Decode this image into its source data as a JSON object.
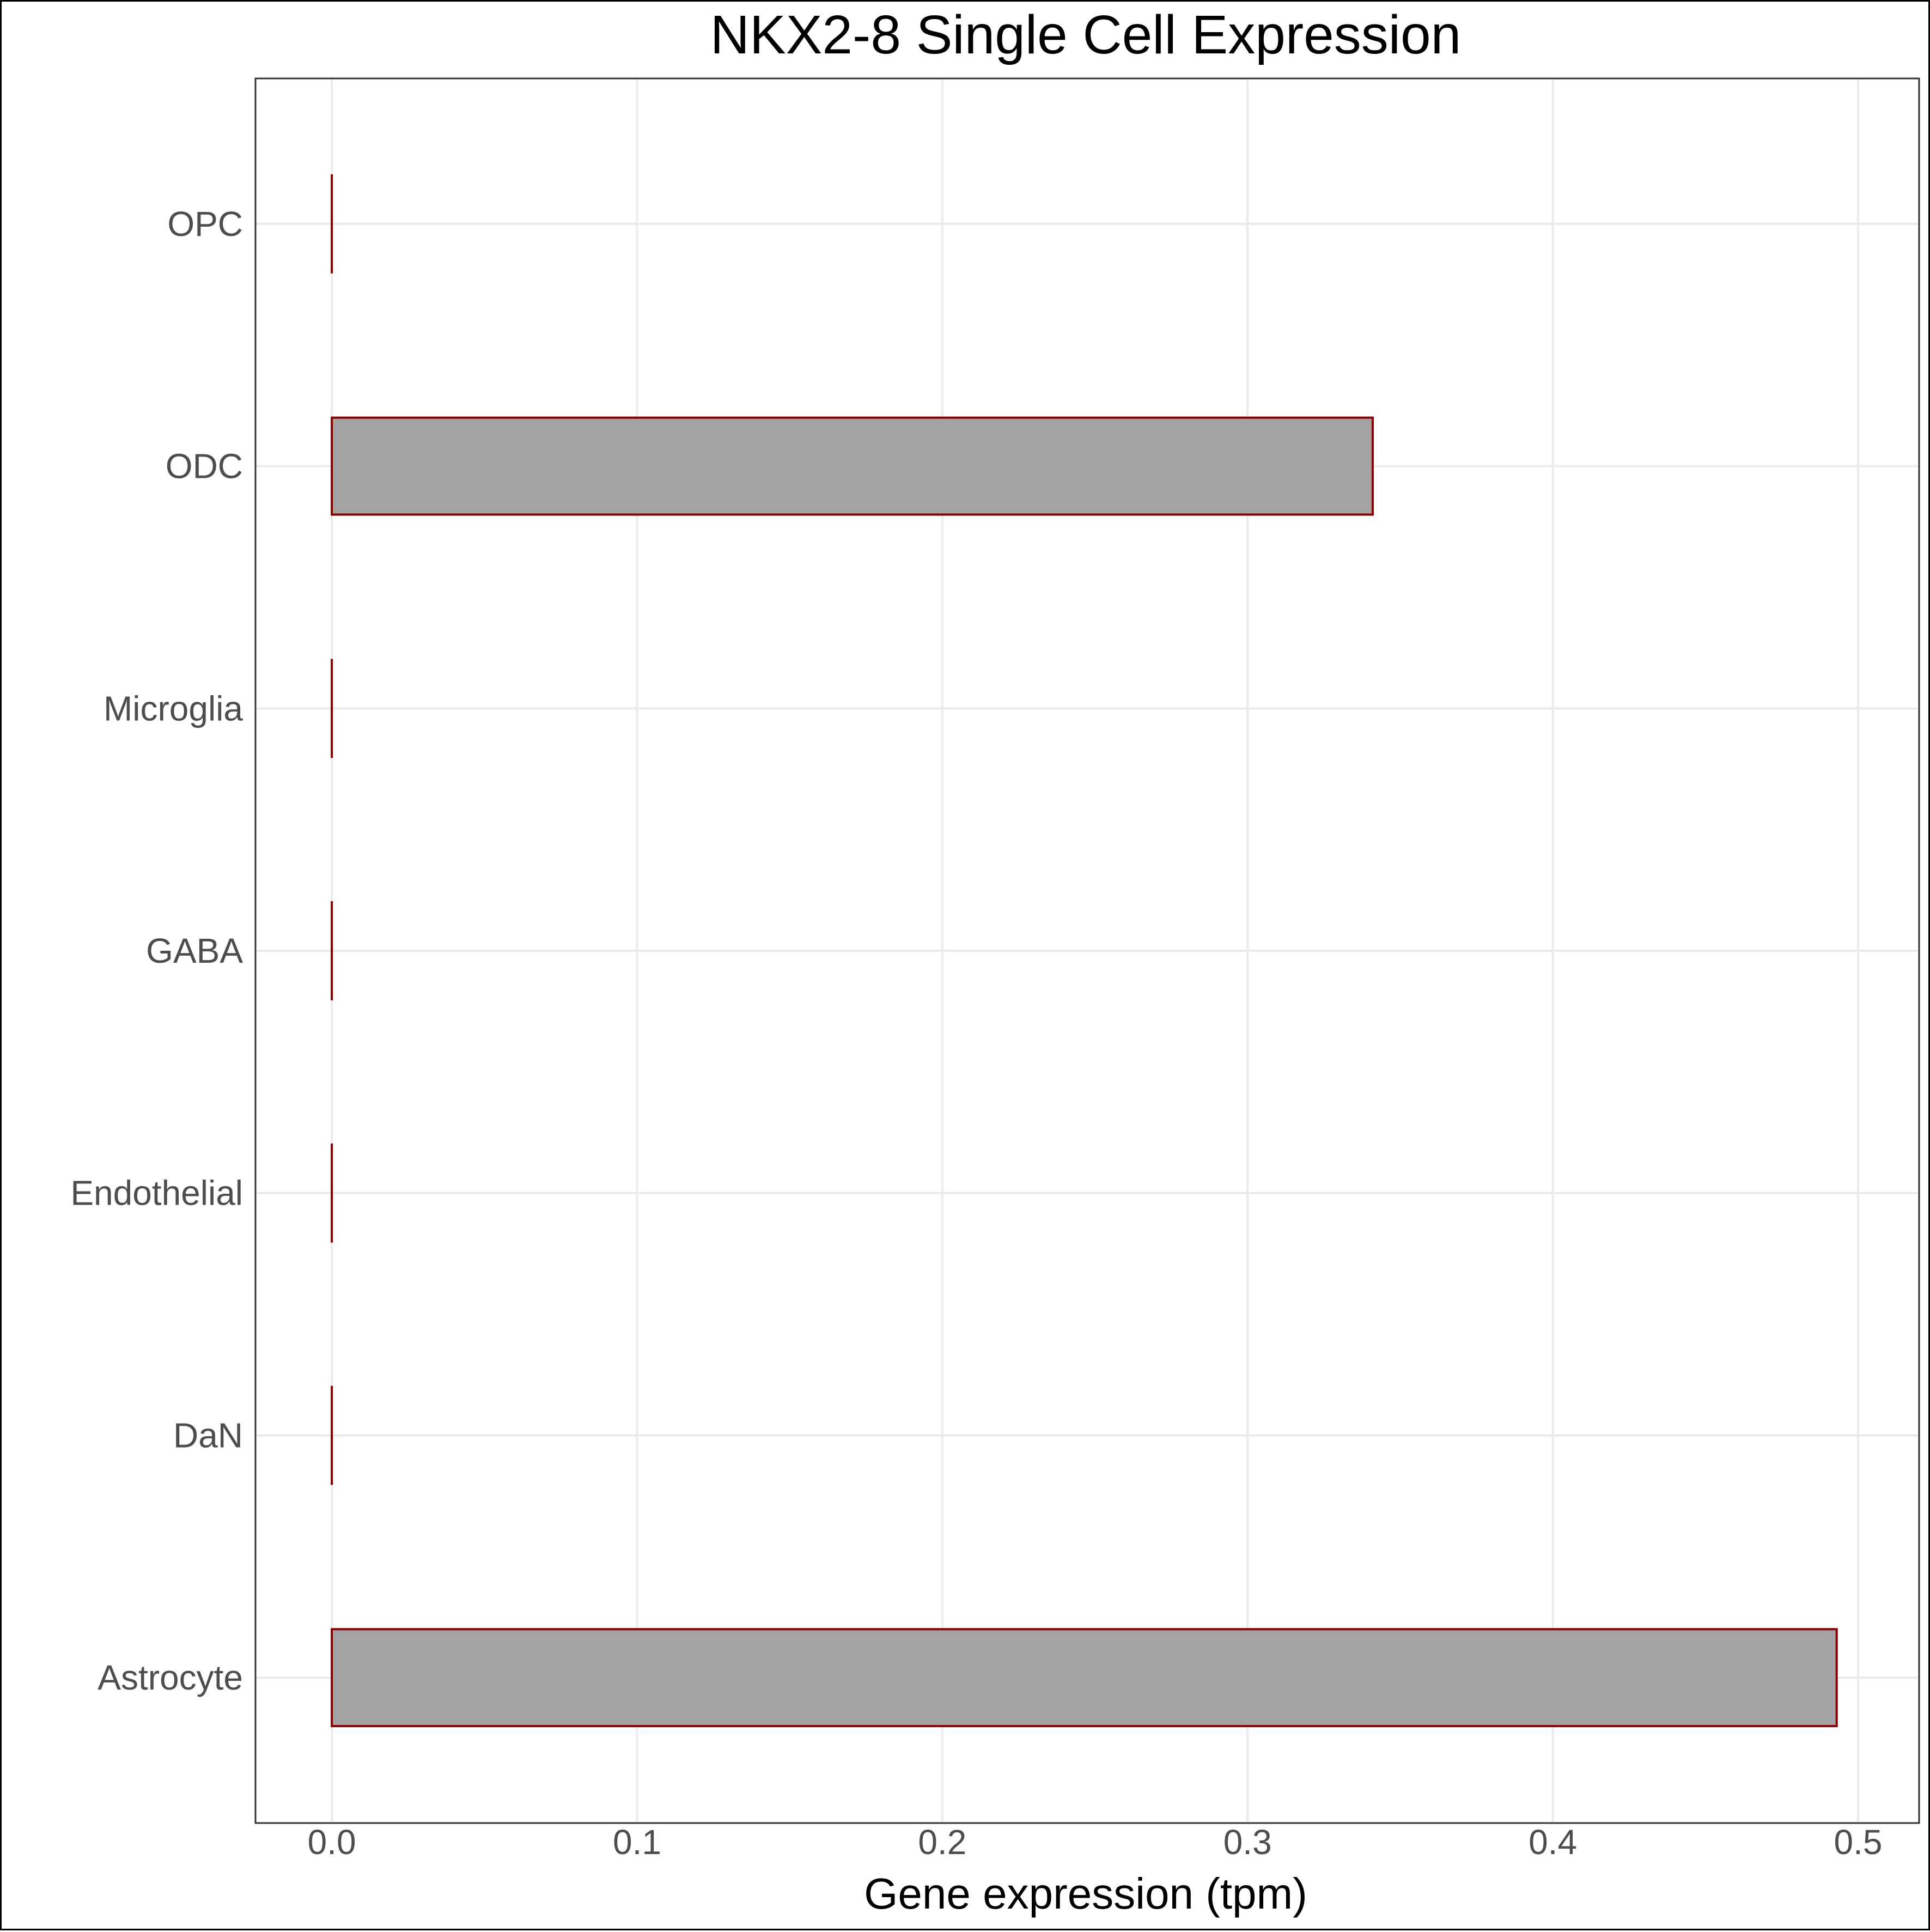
{
  "chart_data": {
    "type": "bar",
    "orientation": "horizontal",
    "title": "NKX2-8 Single Cell Expression",
    "xlabel": "Gene expression (tpm)",
    "ylabel": "",
    "categories": [
      "Astrocyte",
      "DaN",
      "Endothelial",
      "GABA",
      "Microglia",
      "ODC",
      "OPC"
    ],
    "values": [
      0.493,
      0.0,
      0.0,
      0.0,
      0.0,
      0.341,
      0.0
    ],
    "xlim": [
      -0.025,
      0.52
    ],
    "xticks": [
      0.0,
      0.1,
      0.2,
      0.3,
      0.4,
      0.5
    ],
    "xtick_labels": [
      "0.0",
      "0.1",
      "0.2",
      "0.3",
      "0.4",
      "0.5"
    ],
    "grid": true,
    "legend": "none",
    "colors": {
      "bar_fill": "#a3a3a3",
      "bar_stroke": "#8b0000",
      "grid": "#ebebeb",
      "panel_border": "#333333",
      "tick_text": "#4d4d4d"
    }
  }
}
